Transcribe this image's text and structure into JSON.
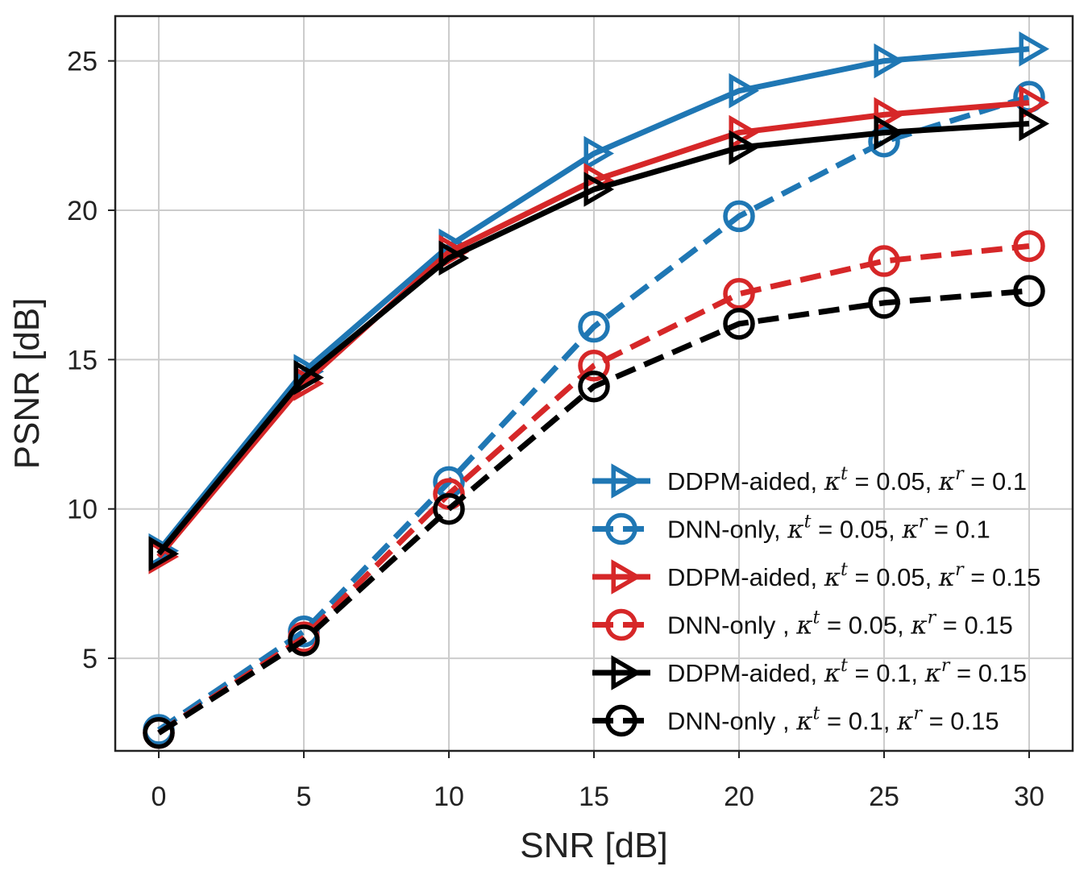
{
  "chart_data": {
    "type": "line",
    "title": "",
    "xlabel": "SNR [dB]",
    "ylabel": "PSNR [dB]",
    "x": [
      0,
      5,
      10,
      15,
      20,
      25,
      30
    ],
    "xlim": [
      -1.5,
      31.5
    ],
    "ylim": [
      1.9,
      26.5
    ],
    "xticks": [
      0,
      5,
      10,
      15,
      20,
      25,
      30
    ],
    "yticks": [
      5,
      10,
      15,
      20,
      25
    ],
    "grid": true,
    "legend_position": "bottom-right",
    "series": [
      {
        "name": "DDPM-aided, κ^t = 0.05, κ^r = 0.1",
        "label_prefix": "DDPM-aided, ",
        "kt": "0.05",
        "kr": "0.1",
        "color": "#1f77b4",
        "linestyle": "solid",
        "marker": "triangle-right",
        "values": [
          8.6,
          14.6,
          18.8,
          21.9,
          24.0,
          25.0,
          25.4
        ]
      },
      {
        "name": "DNN-only,  κ^t = 0.05, κ^r = 0.1",
        "label_prefix": "DNN-only,  ",
        "kt": "0.05",
        "kr": "0.1",
        "color": "#1f77b4",
        "linestyle": "dashed",
        "marker": "circle",
        "values": [
          2.6,
          5.9,
          10.9,
          16.1,
          19.8,
          22.3,
          23.8
        ]
      },
      {
        "name": "DDPM-aided, κ^t = 0.05, κ^r = 0.15",
        "label_prefix": "DDPM-aided, ",
        "kt": "0.05",
        "kr": "0.15",
        "color": "#d62728",
        "linestyle": "solid",
        "marker": "triangle-right",
        "values": [
          8.4,
          14.2,
          18.6,
          21.0,
          22.6,
          23.2,
          23.6
        ]
      },
      {
        "name": "DNN-only , κ^t = 0.05, κ^r = 0.15",
        "label_prefix": "DNN-only , ",
        "kt": "0.05",
        "kr": "0.15",
        "color": "#d62728",
        "linestyle": "dashed",
        "marker": "circle",
        "values": [
          2.5,
          5.7,
          10.5,
          14.8,
          17.2,
          18.3,
          18.8
        ]
      },
      {
        "name": "DDPM-aided, κ^t = 0.1, κ^r = 0.15",
        "label_prefix": "DDPM-aided, ",
        "kt": "0.1",
        "kr": "0.15",
        "color": "#000000",
        "linestyle": "solid",
        "marker": "triangle-right",
        "values": [
          8.5,
          14.4,
          18.4,
          20.7,
          22.1,
          22.6,
          22.9
        ]
      },
      {
        "name": "DNN-only , κ^t = 0.1, κ^r = 0.15",
        "label_prefix": "DNN-only , ",
        "kt": "0.1",
        "kr": "0.15",
        "color": "#000000",
        "linestyle": "dashed",
        "marker": "circle",
        "values": [
          2.5,
          5.6,
          10.0,
          14.1,
          16.2,
          16.9,
          17.3
        ]
      }
    ]
  }
}
